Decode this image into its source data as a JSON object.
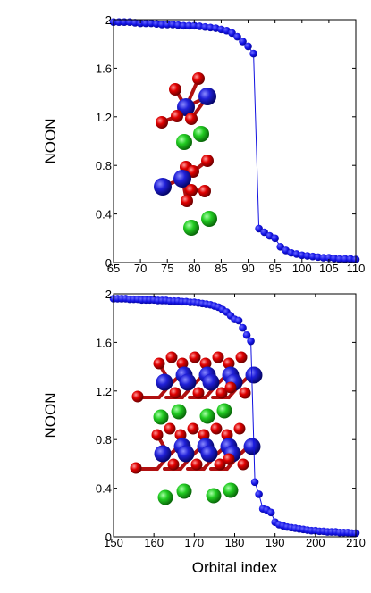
{
  "chart_data": [
    {
      "type": "scatter",
      "ylabel": "NOON",
      "xlabel": "",
      "xlim": [
        65,
        110
      ],
      "ylim": [
        0,
        2
      ],
      "xticks": [
        65,
        70,
        75,
        80,
        85,
        90,
        95,
        100,
        105,
        110
      ],
      "yticks": [
        0,
        0.4,
        0.8,
        1.2,
        1.6,
        2
      ],
      "ytick_labels": [
        "0",
        "0.4",
        "0.8",
        "1.2",
        "1.6",
        "2"
      ],
      "grid": false,
      "marker_color": "#1010e0",
      "series": [
        {
          "x": [
            65,
            66,
            67,
            68,
            69,
            70,
            71,
            72,
            73,
            74,
            75,
            76,
            77,
            78,
            79,
            80,
            81,
            82,
            83,
            84,
            85,
            86,
            87,
            88,
            89,
            90,
            91,
            92,
            93,
            94,
            95,
            96,
            97,
            98,
            99,
            100,
            101,
            102,
            103,
            104,
            105,
            106,
            107,
            108,
            109,
            110
          ],
          "values": [
            1.98,
            1.98,
            1.98,
            1.98,
            1.975,
            1.97,
            1.97,
            1.97,
            1.965,
            1.96,
            1.96,
            1.96,
            1.955,
            1.95,
            1.95,
            1.95,
            1.945,
            1.94,
            1.935,
            1.93,
            1.92,
            1.91,
            1.89,
            1.86,
            1.82,
            1.78,
            1.72,
            0.28,
            0.25,
            0.22,
            0.2,
            0.13,
            0.1,
            0.08,
            0.07,
            0.06,
            0.055,
            0.05,
            0.045,
            0.04,
            0.04,
            0.035,
            0.03,
            0.03,
            0.03,
            0.025
          ]
        }
      ]
    },
    {
      "type": "scatter",
      "ylabel": "NOON",
      "xlabel": "Orbital index",
      "xlim": [
        150,
        210
      ],
      "ylim": [
        0,
        2
      ],
      "xticks": [
        150,
        160,
        170,
        180,
        190,
        200,
        210
      ],
      "yticks": [
        0,
        0.4,
        0.8,
        1.2,
        1.6,
        2
      ],
      "ytick_labels": [
        "0",
        "0.4",
        "0.8",
        "1.2",
        "1.6",
        "2"
      ],
      "grid": false,
      "marker_color": "#1010e0",
      "series": [
        {
          "x": [
            150,
            151,
            152,
            153,
            154,
            155,
            156,
            157,
            158,
            159,
            160,
            161,
            162,
            163,
            164,
            165,
            166,
            167,
            168,
            169,
            170,
            171,
            172,
            173,
            174,
            175,
            176,
            177,
            178,
            179,
            180,
            181,
            182,
            183,
            184,
            185,
            186,
            187,
            188,
            189,
            190,
            191,
            192,
            193,
            194,
            195,
            196,
            197,
            198,
            199,
            200,
            201,
            202,
            203,
            204,
            205,
            206,
            207,
            208,
            209,
            210
          ],
          "values": [
            1.96,
            1.96,
            1.96,
            1.96,
            1.955,
            1.955,
            1.955,
            1.95,
            1.95,
            1.95,
            1.95,
            1.945,
            1.945,
            1.945,
            1.94,
            1.94,
            1.94,
            1.935,
            1.935,
            1.93,
            1.93,
            1.925,
            1.92,
            1.915,
            1.91,
            1.9,
            1.89,
            1.87,
            1.85,
            1.82,
            1.79,
            1.78,
            1.72,
            1.66,
            1.61,
            0.45,
            0.35,
            0.23,
            0.22,
            0.2,
            0.12,
            0.1,
            0.09,
            0.08,
            0.075,
            0.07,
            0.065,
            0.06,
            0.055,
            0.05,
            0.05,
            0.045,
            0.045,
            0.04,
            0.04,
            0.04,
            0.035,
            0.035,
            0.035,
            0.03,
            0.03
          ]
        }
      ]
    }
  ]
}
